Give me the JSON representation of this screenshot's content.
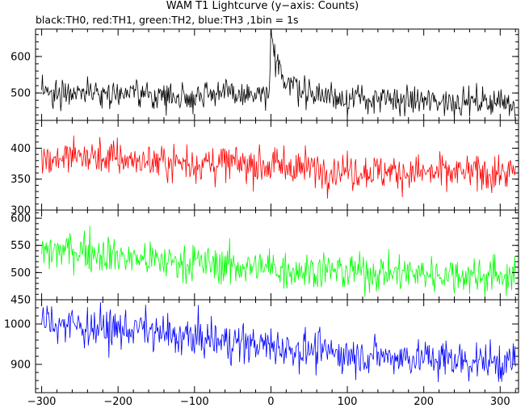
{
  "title": "WAM T1 Lightcurve (y−axis: Counts)",
  "subtitle": "black:TH0, red:TH1, green:TH2, blue:TH3 ,1bin = 1s",
  "chart_data": {
    "type": "line",
    "title": "WAM T1 Lightcurve (y−axis: Counts)",
    "subtitle": "black:TH0, red:TH1, green:TH2, blue:TH3 ,1bin = 1s",
    "xlabel": "",
    "ylabel": "Counts",
    "xlim": [
      -308,
      324
    ],
    "xticks": [
      -300,
      -200,
      -100,
      0,
      100,
      200,
      300
    ],
    "xtick_labels": [
      "−300",
      "−200",
      "−100",
      "0",
      "100",
      "200",
      "300"
    ],
    "bin_size_s": 1,
    "panels": [
      {
        "series_name": "TH0",
        "color": "#000000",
        "ylim": [
          425,
          675
        ],
        "yticks": [
          500,
          600
        ],
        "ytick_labels": [
          "500",
          "600"
        ],
        "trend": [
          [
            -300,
            500
          ],
          [
            -250,
            505
          ],
          [
            -200,
            500
          ],
          [
            -150,
            493
          ],
          [
            -100,
            490
          ],
          [
            -80,
            505
          ],
          [
            -50,
            495
          ],
          [
            -2,
            490
          ],
          [
            0,
            670
          ],
          [
            3,
            600
          ],
          [
            8,
            575
          ],
          [
            20,
            535
          ],
          [
            50,
            500
          ],
          [
            100,
            485
          ],
          [
            150,
            480
          ],
          [
            200,
            478
          ],
          [
            250,
            477
          ],
          [
            300,
            476
          ],
          [
            320,
            470
          ]
        ]
      },
      {
        "series_name": "TH1",
        "color": "#ff0000",
        "ylim": [
          300,
          445
        ],
        "yticks": [
          300,
          350,
          400
        ],
        "ytick_labels": [
          "300",
          "350",
          "400"
        ],
        "trend": [
          [
            -300,
            383
          ],
          [
            -250,
            387
          ],
          [
            -200,
            383
          ],
          [
            -150,
            378
          ],
          [
            -100,
            376
          ],
          [
            -50,
            375
          ],
          [
            0,
            372
          ],
          [
            50,
            368
          ],
          [
            100,
            364
          ],
          [
            150,
            362
          ],
          [
            200,
            360
          ],
          [
            250,
            360
          ],
          [
            300,
            360
          ],
          [
            320,
            360
          ]
        ]
      },
      {
        "series_name": "TH2",
        "color": "#00ff00",
        "ylim": [
          450,
          615
        ],
        "yticks": [
          450,
          500,
          550,
          600
        ],
        "ytick_labels": [
          "450",
          "500",
          "550",
          "600"
        ],
        "trend": [
          [
            -300,
            538
          ],
          [
            -250,
            542
          ],
          [
            -200,
            530
          ],
          [
            -150,
            522
          ],
          [
            -100,
            518
          ],
          [
            -50,
            512
          ],
          [
            0,
            508
          ],
          [
            50,
            505
          ],
          [
            100,
            502
          ],
          [
            150,
            500
          ],
          [
            200,
            498
          ],
          [
            250,
            496
          ],
          [
            300,
            494
          ],
          [
            320,
            494
          ]
        ]
      },
      {
        "series_name": "TH3",
        "color": "#0000ff",
        "ylim": [
          830,
          1060
        ],
        "yticks": [
          900,
          1000
        ],
        "ytick_labels": [
          "900",
          "1000"
        ],
        "trend": [
          [
            -300,
            1008
          ],
          [
            -250,
            995
          ],
          [
            -200,
            985
          ],
          [
            -170,
            990
          ],
          [
            -150,
            975
          ],
          [
            -100,
            965
          ],
          [
            -50,
            955
          ],
          [
            0,
            945
          ],
          [
            50,
            935
          ],
          [
            100,
            925
          ],
          [
            150,
            920
          ],
          [
            200,
            915
          ],
          [
            250,
            910
          ],
          [
            300,
            905
          ],
          [
            320,
            905
          ]
        ]
      }
    ]
  }
}
